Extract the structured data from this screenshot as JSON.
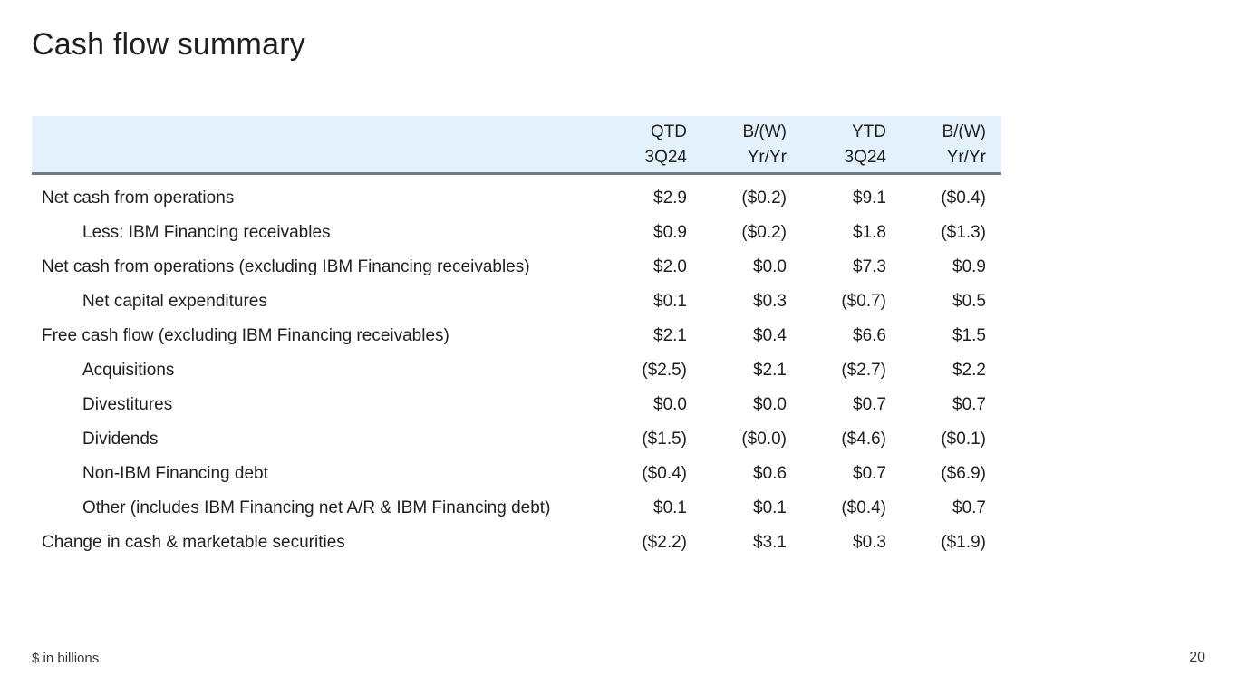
{
  "slide": {
    "title": "Cash flow summary",
    "footnote": "$ in billions",
    "page_number": "20"
  },
  "colors": {
    "header_bg": "#e2f1fb",
    "divider": "#6f7a84",
    "text": "#1f1f1f"
  },
  "table": {
    "columns": [
      {
        "line1": "QTD",
        "line2": "3Q24"
      },
      {
        "line1": "B/(W)",
        "line2": "Yr/Yr"
      },
      {
        "line1": "YTD",
        "line2": "3Q24"
      },
      {
        "line1": "B/(W)",
        "line2": "Yr/Yr"
      }
    ],
    "rows": [
      {
        "label": "Net cash from operations",
        "indent": false,
        "values": [
          "$2.9",
          "($0.2)",
          "$9.1",
          "($0.4)"
        ]
      },
      {
        "label": "Less: IBM Financing receivables",
        "indent": true,
        "values": [
          "$0.9",
          "($0.2)",
          "$1.8",
          "($1.3)"
        ]
      },
      {
        "label": "Net cash from operations (excluding IBM Financing receivables)",
        "indent": false,
        "values": [
          "$2.0",
          "$0.0",
          "$7.3",
          "$0.9"
        ]
      },
      {
        "label": "Net capital expenditures",
        "indent": true,
        "values": [
          "$0.1",
          "$0.3",
          "($0.7)",
          "$0.5"
        ]
      },
      {
        "label": "Free cash flow (excluding IBM Financing receivables)",
        "indent": false,
        "values": [
          "$2.1",
          "$0.4",
          "$6.6",
          "$1.5"
        ]
      },
      {
        "label": "Acquisitions",
        "indent": true,
        "values": [
          "($2.5)",
          "$2.1",
          "($2.7)",
          "$2.2"
        ]
      },
      {
        "label": "Divestitures",
        "indent": true,
        "values": [
          "$0.0",
          "$0.0",
          "$0.7",
          "$0.7"
        ]
      },
      {
        "label": "Dividends",
        "indent": true,
        "values": [
          "($1.5)",
          "($0.0)",
          "($4.6)",
          "($0.1)"
        ]
      },
      {
        "label": "Non-IBM Financing debt",
        "indent": true,
        "values": [
          "($0.4)",
          "$0.6",
          "$0.7",
          "($6.9)"
        ]
      },
      {
        "label": "Other (includes IBM Financing net A/R & IBM Financing debt)",
        "indent": true,
        "values": [
          "$0.1",
          "$0.1",
          "($0.4)",
          "$0.7"
        ]
      },
      {
        "label": "Change in cash & marketable securities",
        "indent": false,
        "values": [
          "($2.2)",
          "$3.1",
          "$0.3",
          "($1.9)"
        ]
      }
    ]
  }
}
